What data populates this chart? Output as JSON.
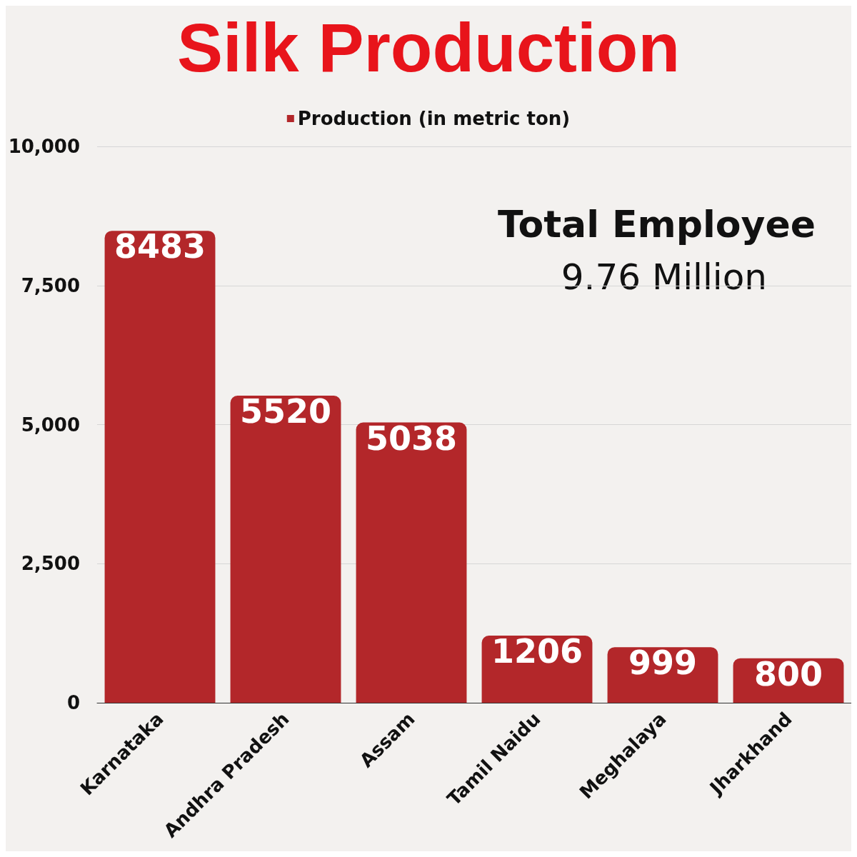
{
  "chart_data": {
    "type": "bar",
    "title": "Silk Production",
    "categories": [
      "Karnataka",
      "Andhra Pradesh",
      "Assam",
      "Tamil Naidu",
      "Meghalaya",
      "Jharkhand"
    ],
    "series": [
      {
        "name": "Production (in metric ton)",
        "color": "#b3272a",
        "values": [
          8483,
          5520,
          5038,
          1206,
          999,
          800
        ]
      }
    ],
    "ylim": [
      0,
      10000
    ],
    "yticks": [
      0,
      {
        "value": 2500,
        "label": "2,500"
      },
      {
        "value": 5000,
        "label": "5,000"
      },
      {
        "value": 7500,
        "label": "7,500"
      },
      {
        "value": 10000,
        "label": "10,000"
      }
    ],
    "grid": "y",
    "legend": "top",
    "data_labels": true,
    "annotations": [
      "Total Employee",
      "9.76 Million"
    ]
  }
}
